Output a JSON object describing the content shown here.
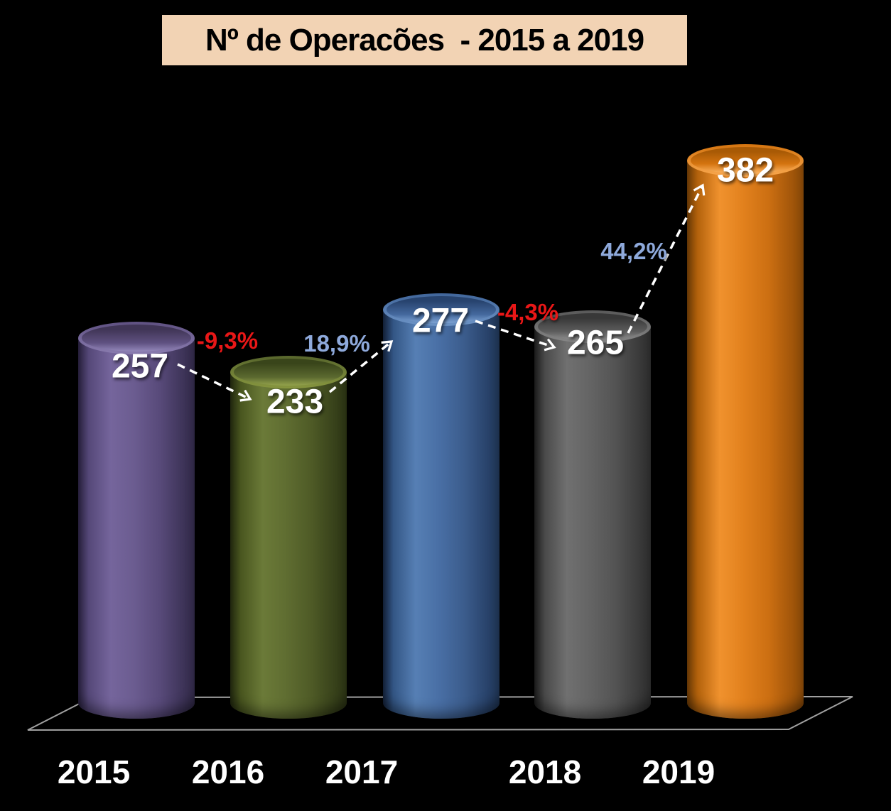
{
  "title": {
    "text": "Nº de Operacões  - 2015 a 2019",
    "background": "#f2d3b4",
    "text_color": "#000000"
  },
  "chart_data": {
    "type": "bar",
    "style": "3d-cylinder",
    "title": "Nº de Operacões  - 2015 a 2019",
    "categories": [
      "2015",
      "2016",
      "2017",
      "2018",
      "2019"
    ],
    "values": [
      257,
      233,
      277,
      265,
      382
    ],
    "series": [
      {
        "name": "Nº de Operacões",
        "values": [
          257,
          233,
          277,
          265,
          382
        ]
      }
    ],
    "bar_colors": [
      "#5f5181",
      "#5a682f",
      "#44699e",
      "#5d5d5d",
      "#e2811d"
    ],
    "pct_changes": [
      {
        "from": "2015",
        "to": "2016",
        "label": "-9,3%",
        "direction": "down",
        "color": "#e91717"
      },
      {
        "from": "2016",
        "to": "2017",
        "label": "18,9%",
        "direction": "up",
        "color": "#8ea9db"
      },
      {
        "from": "2017",
        "to": "2018",
        "label": "-4,3%",
        "direction": "down",
        "color": "#e91717"
      },
      {
        "from": "2018",
        "to": "2019",
        "label": "44,2%",
        "direction": "up",
        "color": "#8ea9db"
      }
    ],
    "xlabel": "",
    "ylabel": "",
    "ylim": [
      0,
      400
    ],
    "grid": false,
    "legend": false,
    "axes_visible": false,
    "background": "#000000",
    "floor_outline_color": "#a0a0a0",
    "arrow_style": "white-dashed"
  }
}
